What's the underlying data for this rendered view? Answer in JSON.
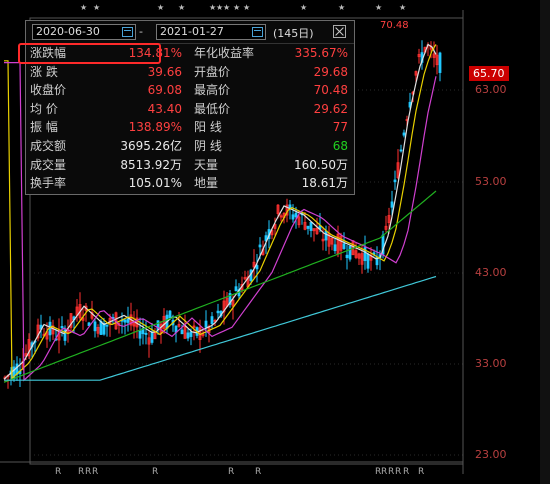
{
  "header": {
    "start_date": "2020-06-30",
    "separator": "-",
    "end_date": "2021-01-27",
    "days": "(145日)"
  },
  "stats": [
    {
      "l1": "涨跌幅",
      "v1": "134.81%",
      "c1": "red",
      "l2": "年化收益率",
      "v2": "335.67%",
      "c2": "red"
    },
    {
      "l1": "涨  跌",
      "v1": "39.66",
      "c1": "red",
      "l2": "开盘价",
      "v2": "29.68",
      "c2": "red"
    },
    {
      "l1": "收盘价",
      "v1": "69.08",
      "c1": "red",
      "l2": "最高价",
      "v2": "70.48",
      "c2": "red"
    },
    {
      "l1": "均  价",
      "v1": "43.40",
      "c1": "red",
      "l2": "最低价",
      "v2": "29.62",
      "c2": "red"
    },
    {
      "l1": "振  幅",
      "v1": "138.89%",
      "c1": "red",
      "l2": "阳  线",
      "v2": "77",
      "c2": "red"
    },
    {
      "l1": "成交额",
      "v1": "3695.26亿",
      "c1": "white",
      "l2": "阴  线",
      "v2": "68",
      "c2": "green"
    },
    {
      "l1": "成交量",
      "v1": "8513.92万",
      "c1": "white",
      "l2": "天量",
      "v2": "160.50万",
      "c2": "white"
    },
    {
      "l1": "换手率",
      "v1": "105.01%",
      "c1": "white",
      "l2": "地量",
      "v2": "18.61万",
      "c2": "white"
    }
  ],
  "price_tag": "65.70",
  "high_marker": "70.48",
  "y_axis": [
    "63.00",
    "53.00",
    "43.00",
    "33.00",
    "23.00"
  ],
  "colors": {
    "up": "#ff3030",
    "down": "#20c8ff",
    "ma5": "#e0e0e0",
    "ma10": "#e8d000",
    "ma20": "#d040d0",
    "ma60": "#20b020",
    "ma120": "#40c8d8"
  }
}
